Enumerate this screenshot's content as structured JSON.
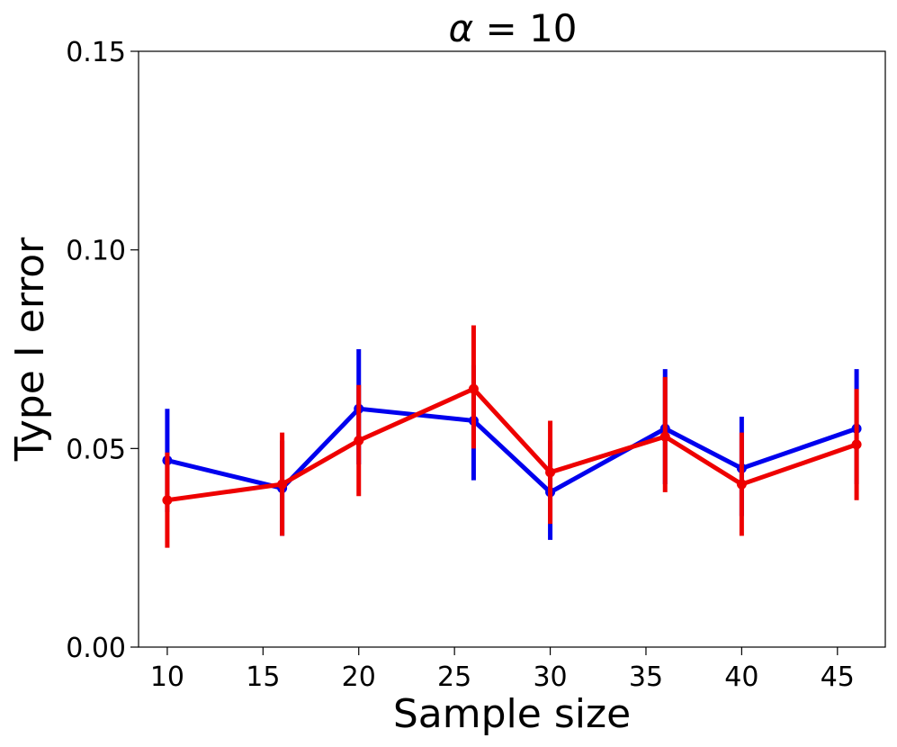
{
  "chart_data": {
    "type": "line",
    "title": "α = 10",
    "title_symbol": "α",
    "title_rest": " = 10",
    "xlabel": "Sample size",
    "ylabel": "Type I error",
    "xlim": [
      8.5,
      47.5
    ],
    "ylim": [
      0.0,
      0.15
    ],
    "x_ticks": [
      10,
      15,
      20,
      25,
      30,
      35,
      40,
      45
    ],
    "x_tick_labels": [
      "10",
      "15",
      "20",
      "25",
      "30",
      "35",
      "40",
      "45"
    ],
    "y_ticks": [
      0.0,
      0.05,
      0.1,
      0.15
    ],
    "y_tick_labels": [
      "0.00",
      "0.05",
      "0.10",
      "0.15"
    ],
    "grid": false,
    "series": [
      {
        "name": "blue-series",
        "color": "#0000ee",
        "x": [
          10,
          16,
          20,
          26,
          30,
          36,
          40,
          46
        ],
        "values": [
          0.047,
          0.04,
          0.06,
          0.057,
          0.039,
          0.055,
          0.045,
          0.055
        ],
        "error_low": [
          0.034,
          0.028,
          0.046,
          0.042,
          0.027,
          0.041,
          0.033,
          0.041
        ],
        "error_high": [
          0.06,
          0.052,
          0.075,
          0.071,
          0.052,
          0.07,
          0.058,
          0.07
        ]
      },
      {
        "name": "red-series",
        "color": "#ee0000",
        "x": [
          10,
          16,
          20,
          26,
          30,
          36,
          40,
          46
        ],
        "values": [
          0.037,
          0.041,
          0.052,
          0.065,
          0.044,
          0.053,
          0.041,
          0.051
        ],
        "error_low": [
          0.025,
          0.028,
          0.038,
          0.05,
          0.031,
          0.039,
          0.028,
          0.037
        ],
        "error_high": [
          0.049,
          0.054,
          0.066,
          0.081,
          0.057,
          0.068,
          0.054,
          0.065
        ]
      }
    ]
  }
}
